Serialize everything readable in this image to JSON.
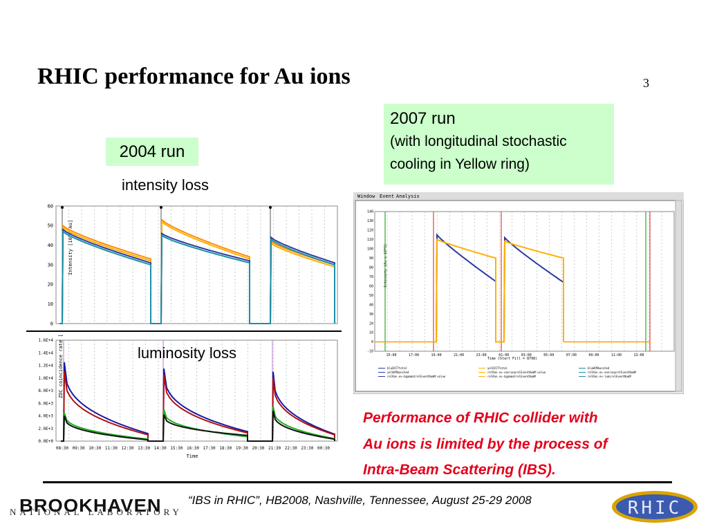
{
  "slide": {
    "title": "RHIC performance for Au ions",
    "page_number": "3"
  },
  "labels": {
    "run_2004": "2004 run",
    "intensity_loss": "intensity loss",
    "luminosity_loss": "luminosity loss",
    "run_2007_title": "2007 run",
    "run_2007_line2": "(with longitudinal stochastic",
    "run_2007_line3": "cooling in Yellow ring)"
  },
  "conclusion": {
    "line1": "Performance of RHIC collider with",
    "line2": "Au ions is limited by the process of",
    "line3": "Intra-Beam Scattering (IBS)."
  },
  "footer": {
    "citation": "“IBS in RHIC”, HB2008, Nashville, Tennessee, August 25-29  2008",
    "bnl_top": "BROOKHAVEN",
    "bnl_bottom": "NATIONAL LABORATORY",
    "rhic_logo": "RHIC"
  },
  "colors": {
    "accent_green": "#ccffcc",
    "conclusion_red": "#e3001b"
  },
  "chart_data": [
    {
      "type": "line",
      "ylabel": "Intensity [10^9 Au]",
      "ylim": [
        0,
        60
      ],
      "yticks": [
        "60",
        "50",
        "40",
        "30",
        "20",
        "10",
        "0"
      ],
      "series": [
        {
          "color": "#ff8c00",
          "stores": [
            [
              50,
              33
            ],
            [
              53,
              34
            ],
            [
              42,
              30
            ]
          ]
        },
        {
          "color": "#ffb000",
          "stores": [
            [
              49,
              32
            ],
            [
              52,
              33
            ],
            [
              41,
              29
            ]
          ]
        },
        {
          "color": "#2a3aa0",
          "stores": [
            [
              48,
              31
            ],
            [
              46,
              32
            ],
            [
              44,
              31
            ]
          ]
        },
        {
          "color": "#1a8fa8",
          "stores": [
            [
              47,
              30
            ],
            [
              45,
              31
            ],
            [
              43,
              30
            ]
          ]
        }
      ]
    },
    {
      "type": "line",
      "ylabel": "ZDC coincidence rate [Hz]",
      "xlabel": "Time",
      "ylim": [
        0,
        16000
      ],
      "yticks": [
        "1.6E+4",
        "1.4E+4",
        "1.2E+4",
        "1.0E+4",
        "8.0E+3",
        "6.0E+3",
        "4.0E+3",
        "2.0E+3",
        "0.0E+0"
      ],
      "xticks": [
        "08:30",
        "09:30",
        "10:30",
        "11:30",
        "12:30",
        "13:30",
        "14:30",
        "15:30",
        "16:30",
        "17:30",
        "18:30",
        "19:30",
        "20:30",
        "21:30",
        "22:30",
        "23:30",
        "00:30"
      ],
      "series": [
        {
          "color": "#1a1aa0",
          "stores": [
            [
              12500,
              1200
            ],
            [
              11500,
              1500
            ],
            [
              11000,
              1100
            ]
          ]
        },
        {
          "color": "#b01010",
          "stores": [
            [
              11000,
              1000
            ],
            [
              10500,
              1300
            ],
            [
              10000,
              1000
            ]
          ]
        },
        {
          "color": "#20b020",
          "stores": [
            [
              4500,
              300
            ],
            [
              5000,
              700
            ],
            [
              5500,
              400
            ]
          ]
        },
        {
          "color": "#111111",
          "stores": [
            [
              4000,
              200
            ],
            [
              4200,
              900
            ],
            [
              4800,
              300
            ]
          ]
        }
      ]
    },
    {
      "type": "line",
      "window_menu": [
        "Window",
        "Event",
        "Analysis"
      ],
      "ylabel": "Intensity [Au x 10^9]",
      "xlabel": "Time (Start Fill = 8798)",
      "ylim": [
        -10,
        140
      ],
      "yticks": [
        "140",
        "130",
        "120",
        "110",
        "100",
        "90",
        "80",
        "70",
        "60",
        "50",
        "40",
        "30",
        "20",
        "10",
        "0",
        "-10"
      ],
      "xticks": [
        "15:00",
        "17:00",
        "19:00",
        "21:00",
        "23:00",
        "01:00",
        "03:00",
        "05:00",
        "07:00",
        "09:00",
        "11:00",
        "13:00"
      ],
      "series": [
        {
          "color": "#2a3aa0",
          "stores": [
            [
              115,
              65
            ],
            [
              112,
              64
            ]
          ]
        },
        {
          "color": "#ffb000",
          "stores": [
            [
              110,
              90
            ],
            [
              108,
              90
            ]
          ]
        }
      ],
      "legend": [
        "bluDCCTtotal",
        "yelDCCTtotal",
        "bluWCMbunched",
        "yelWCMbunched",
        "relRon.ev-xonrunprelEventNumM:value",
        "relRon.ev-xonrunprelEventNumM",
        "relRon.ev-bgammatrelEventNumM:value",
        "relRon.ev-bgammatrelEventNumM",
        "relRon.ev-lumirelEventNumM"
      ]
    }
  ]
}
